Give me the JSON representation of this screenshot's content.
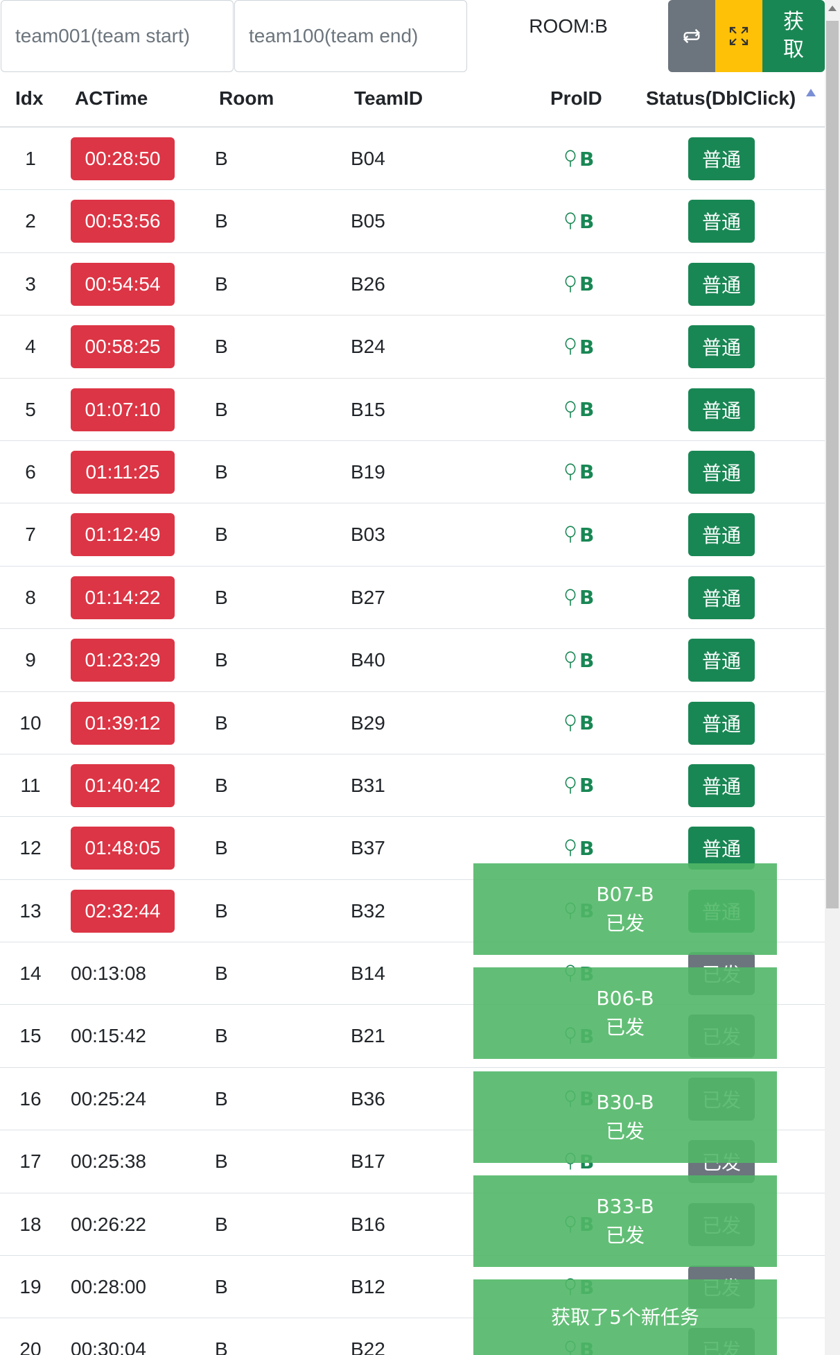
{
  "filters": {
    "start_placeholder": "team001(team start)",
    "end_placeholder": "team100(team end)"
  },
  "room_label": "ROOM:B",
  "buttons": {
    "fetch_line1": "获",
    "fetch_line2": "取",
    "swap_icon": "repeat-icon",
    "fullscreen_icon": "fullscreen-icon"
  },
  "table": {
    "headers": [
      "Idx",
      "ACTime",
      "Room",
      "TeamID",
      "ProID",
      "Status(DblClick)"
    ],
    "sort": "ascending",
    "rows": [
      {
        "idx": "1",
        "time": "00:28:50",
        "room": "B",
        "team": "B04",
        "pro": "B",
        "status": "普通",
        "late": true
      },
      {
        "idx": "2",
        "time": "00:53:56",
        "room": "B",
        "team": "B05",
        "pro": "B",
        "status": "普通",
        "late": true
      },
      {
        "idx": "3",
        "time": "00:54:54",
        "room": "B",
        "team": "B26",
        "pro": "B",
        "status": "普通",
        "late": true
      },
      {
        "idx": "4",
        "time": "00:58:25",
        "room": "B",
        "team": "B24",
        "pro": "B",
        "status": "普通",
        "late": true
      },
      {
        "idx": "5",
        "time": "01:07:10",
        "room": "B",
        "team": "B15",
        "pro": "B",
        "status": "普通",
        "late": true
      },
      {
        "idx": "6",
        "time": "01:11:25",
        "room": "B",
        "team": "B19",
        "pro": "B",
        "status": "普通",
        "late": true
      },
      {
        "idx": "7",
        "time": "01:12:49",
        "room": "B",
        "team": "B03",
        "pro": "B",
        "status": "普通",
        "late": true
      },
      {
        "idx": "8",
        "time": "01:14:22",
        "room": "B",
        "team": "B27",
        "pro": "B",
        "status": "普通",
        "late": true
      },
      {
        "idx": "9",
        "time": "01:23:29",
        "room": "B",
        "team": "B40",
        "pro": "B",
        "status": "普通",
        "late": true
      },
      {
        "idx": "10",
        "time": "01:39:12",
        "room": "B",
        "team": "B29",
        "pro": "B",
        "status": "普通",
        "late": true
      },
      {
        "idx": "11",
        "time": "01:40:42",
        "room": "B",
        "team": "B31",
        "pro": "B",
        "status": "普通",
        "late": true
      },
      {
        "idx": "12",
        "time": "01:48:05",
        "room": "B",
        "team": "B37",
        "pro": "B",
        "status": "普通",
        "late": true
      },
      {
        "idx": "13",
        "time": "02:32:44",
        "room": "B",
        "team": "B32",
        "pro": "B",
        "status": "普通",
        "late": true
      },
      {
        "idx": "14",
        "time": "00:13:08",
        "room": "B",
        "team": "B14",
        "pro": "B",
        "status": "已发",
        "late": false
      },
      {
        "idx": "15",
        "time": "00:15:42",
        "room": "B",
        "team": "B21",
        "pro": "B",
        "status": "已发",
        "late": false
      },
      {
        "idx": "16",
        "time": "00:25:24",
        "room": "B",
        "team": "B36",
        "pro": "B",
        "status": "已发",
        "late": false
      },
      {
        "idx": "17",
        "time": "00:25:38",
        "room": "B",
        "team": "B17",
        "pro": "B",
        "status": "已发",
        "late": false
      },
      {
        "idx": "18",
        "time": "00:26:22",
        "room": "B",
        "team": "B16",
        "pro": "B",
        "status": "已发",
        "late": false
      },
      {
        "idx": "19",
        "time": "00:28:00",
        "room": "B",
        "team": "B12",
        "pro": "B",
        "status": "已发",
        "late": false
      },
      {
        "idx": "20",
        "time": "00:30:04",
        "room": "B",
        "team": "B22",
        "pro": "B",
        "status": "已发",
        "late": false
      }
    ]
  },
  "toasts": [
    {
      "line1": "B07-B",
      "line2": "已发"
    },
    {
      "line1": "B06-B",
      "line2": "已发"
    },
    {
      "line1": "B30-B",
      "line2": "已发"
    },
    {
      "line1": "B33-B",
      "line2": "已发"
    },
    {
      "line1": "获取了5个新任务",
      "line2": ""
    }
  ],
  "colors": {
    "late_badge": "#dc3545",
    "status_normal": "#198754",
    "status_sent": "#6c757d",
    "toast": "#51b767"
  }
}
